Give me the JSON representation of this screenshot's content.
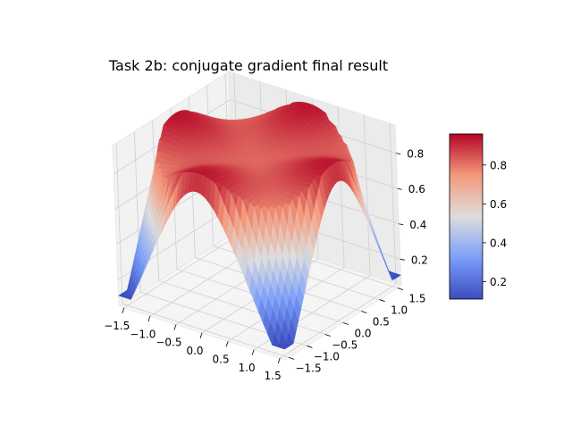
{
  "chart_data": {
    "type": "surface3d",
    "title": "Task 2b: conjugate gradient final result",
    "x_ticks": [
      "−1.5",
      "−1.0",
      "−0.5",
      "0.0",
      "0.5",
      "1.0",
      "1.5"
    ],
    "y_ticks": [
      "−1.5",
      "−1.0",
      "−0.5",
      "0.0",
      "0.5",
      "1.0",
      "1.5"
    ],
    "z_ticks": [
      "0.2",
      "0.4",
      "0.6",
      "0.8"
    ],
    "colorbar_ticks": [
      "0.2",
      "0.4",
      "0.6",
      "0.8"
    ],
    "xlim": [
      -1.6,
      1.6
    ],
    "ylim": [
      -1.6,
      1.6
    ],
    "zlim": [
      0.05,
      0.96
    ],
    "colorbar_range": [
      0.11,
      0.96
    ],
    "colormap": "coolwarm",
    "colormap_low": "#3b4cc0",
    "colormap_mid": "#dddddd",
    "colormap_high": "#b40426",
    "grid": true,
    "surface": {
      "x_range": [
        -1.6,
        1.6
      ],
      "y_range": [
        -1.6,
        1.6
      ],
      "z_min": 0.11,
      "z_max": 0.96,
      "peaks": [
        {
          "x": -1.1,
          "y": 1.1,
          "z": 0.95
        },
        {
          "x": 1.1,
          "y": 1.1,
          "z": 0.96
        },
        {
          "x": 1.1,
          "y": -1.1,
          "z": 0.93
        },
        {
          "x": -1.1,
          "y": -1.1,
          "z": 0.92
        }
      ],
      "center_value": 0.82,
      "corner_values": [
        {
          "x": -1.6,
          "y": -1.6,
          "z": 0.11
        },
        {
          "x": 1.6,
          "y": -1.6,
          "z": 0.11
        },
        {
          "x": 1.6,
          "y": 1.6,
          "z": 0.11
        },
        {
          "x": -1.6,
          "y": 1.6,
          "z": 0.11
        }
      ]
    }
  }
}
